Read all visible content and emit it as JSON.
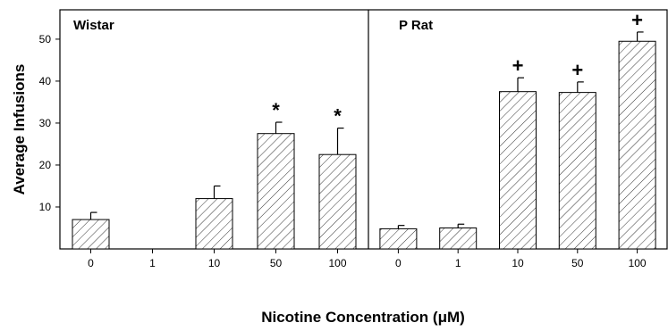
{
  "chart_data": {
    "type": "bar",
    "ylabel": "Average Infusions",
    "xlabel": "Nicotine Concentration (μM)",
    "ylim": [
      0,
      57
    ],
    "yticks": [
      10,
      20,
      30,
      40,
      50
    ],
    "categories": [
      "0",
      "1",
      "10",
      "50",
      "100"
    ],
    "panels": [
      {
        "name": "Wistar",
        "values": [
          7,
          0,
          12,
          27.5,
          22.5
        ],
        "errors": [
          1.7,
          0,
          3,
          2.7,
          6.3
        ],
        "markers": [
          "",
          "",
          "",
          "*",
          "*"
        ]
      },
      {
        "name": "P Rat",
        "values": [
          4.8,
          5,
          37.5,
          37.3,
          49.5
        ],
        "errors": [
          0.8,
          0.9,
          3.3,
          2.5,
          2.2
        ],
        "markers": [
          "",
          "",
          "+",
          "+",
          "+"
        ]
      }
    ]
  }
}
